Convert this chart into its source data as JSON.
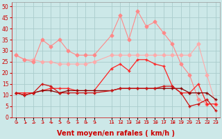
{
  "x": [
    0,
    1,
    2,
    3,
    4,
    5,
    6,
    7,
    8,
    9,
    11,
    12,
    13,
    14,
    15,
    16,
    17,
    18,
    19,
    20,
    21,
    22,
    23
  ],
  "line_pink_flat": [
    28,
    26,
    26,
    25,
    25,
    24,
    24,
    24,
    24,
    25,
    28,
    28,
    28,
    28,
    28,
    28,
    28,
    28,
    28,
    28,
    33,
    19,
    6
  ],
  "line_pink_high": [
    28,
    26,
    25,
    35,
    32,
    35,
    30,
    28,
    28,
    28,
    37,
    46,
    35,
    48,
    41,
    43,
    38,
    33,
    24,
    19,
    8,
    6,
    6
  ],
  "line_red_mid": [
    11,
    11,
    11,
    12,
    13,
    13,
    13,
    12,
    12,
    12,
    22,
    24,
    21,
    26,
    26,
    24,
    23,
    14,
    11,
    11,
    15,
    6,
    6
  ],
  "line_dark_flat": [
    11,
    10,
    11,
    12,
    12,
    11,
    12,
    12,
    12,
    12,
    12,
    13,
    13,
    13,
    13,
    13,
    13,
    13,
    13,
    11,
    11,
    11,
    8
  ],
  "line_dark_drop": [
    11,
    10,
    11,
    15,
    14,
    11,
    11,
    11,
    11,
    11,
    12,
    13,
    13,
    13,
    13,
    13,
    14,
    14,
    11,
    5,
    6,
    8,
    3
  ],
  "bg_color": "#cce8e8",
  "grid_color": "#aacccc",
  "color_pink_flat": "#ffaaaa",
  "color_pink_high": "#ff8888",
  "color_red_mid": "#ff2222",
  "color_dark_flat": "#880000",
  "color_dark_drop": "#cc1111",
  "xlabel": "Vent moyen/en rafales ( km/h )",
  "ylim": [
    0,
    52
  ],
  "yticks": [
    0,
    5,
    10,
    15,
    20,
    25,
    30,
    35,
    40,
    45,
    50
  ]
}
